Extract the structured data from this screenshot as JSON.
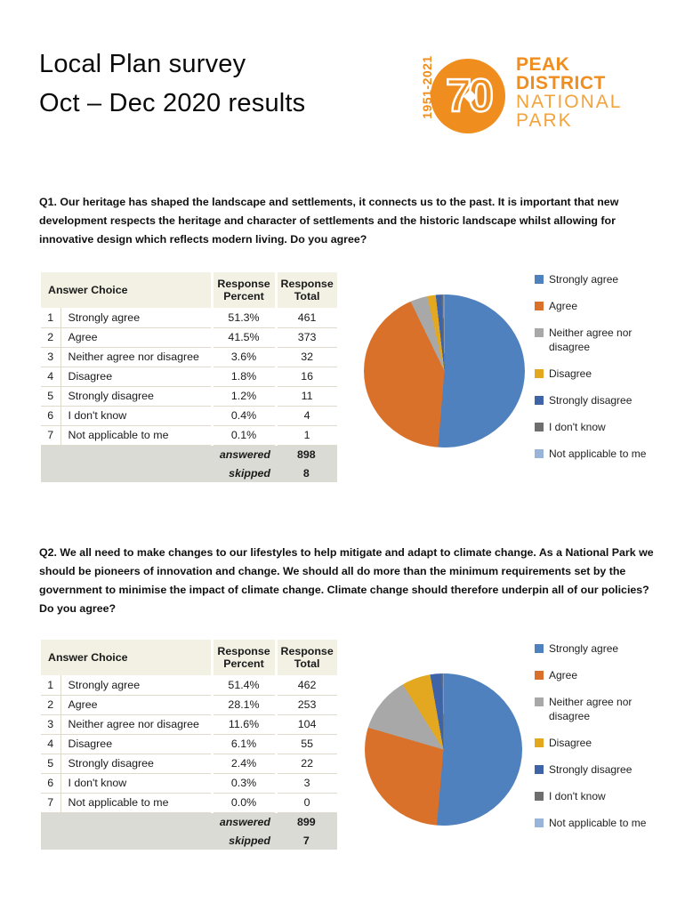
{
  "header": {
    "title_line1": "Local Plan survey",
    "title_line2": "Oct – Dec 2020 results"
  },
  "logo": {
    "years": "1951-2021",
    "badge": "70",
    "line1": "PEAK",
    "line2": "DISTRICT",
    "line3": "NATIONAL",
    "line4": "PARK",
    "orange": "#EF8E1E",
    "light_orange": "#F3A33C"
  },
  "questions": [
    {
      "question": "Q1. Our heritage has shaped the landscape and settlements, it connects us to the past. It is important that new development respects the heritage and character of settlements and the historic landscape whilst allowing for innovative design which reflects modern living. Do you agree?",
      "table": {
        "header_answer": "Answer Choice",
        "header_percent": "Response Percent",
        "header_total": "Response Total",
        "rows": [
          {
            "num": "1",
            "label": "Strongly agree",
            "percent": "51.3%",
            "total": "461"
          },
          {
            "num": "2",
            "label": "Agree",
            "percent": "41.5%",
            "total": "373"
          },
          {
            "num": "3",
            "label": "Neither agree nor disagree",
            "percent": "3.6%",
            "total": "32"
          },
          {
            "num": "4",
            "label": "Disagree",
            "percent": "1.8%",
            "total": "16"
          },
          {
            "num": "5",
            "label": "Strongly disagree",
            "percent": "1.2%",
            "total": "11"
          },
          {
            "num": "6",
            "label": "I don't know",
            "percent": "0.4%",
            "total": "4"
          },
          {
            "num": "7",
            "label": "Not applicable to me",
            "percent": "0.1%",
            "total": "1"
          }
        ],
        "footer": [
          {
            "label": "answered",
            "value": "898"
          },
          {
            "label": "skipped",
            "value": "8"
          }
        ]
      }
    },
    {
      "question": "Q2. We all need to make changes to our lifestyles to help mitigate and adapt to climate change.  As a National Park we should be pioneers of innovation and change. We should all do more than the minimum requirements set by the government to minimise the impact of climate change. Climate change should therefore underpin all of our policies? Do you agree?",
      "table": {
        "header_answer": "Answer Choice",
        "header_percent": "Response Percent",
        "header_total": "Response Total",
        "rows": [
          {
            "num": "1",
            "label": "Strongly agree",
            "percent": "51.4%",
            "total": "462"
          },
          {
            "num": "2",
            "label": "Agree",
            "percent": "28.1%",
            "total": "253"
          },
          {
            "num": "3",
            "label": "Neither agree nor disagree",
            "percent": "11.6%",
            "total": "104"
          },
          {
            "num": "4",
            "label": "Disagree",
            "percent": "6.1%",
            "total": "55"
          },
          {
            "num": "5",
            "label": "Strongly disagree",
            "percent": "2.4%",
            "total": "22"
          },
          {
            "num": "6",
            "label": "I don't know",
            "percent": "0.3%",
            "total": "3"
          },
          {
            "num": "7",
            "label": "Not applicable to me",
            "percent": "0.0%",
            "total": "0"
          }
        ],
        "footer": [
          {
            "label": "answered",
            "value": "899"
          },
          {
            "label": "skipped",
            "value": "7"
          }
        ]
      }
    }
  ],
  "chart_data": [
    {
      "type": "pie",
      "title": "Q1 responses",
      "labels": [
        "Strongly agree",
        "Agree",
        "Neither agree nor disagree",
        "Disagree",
        "Strongly disagree",
        "I don't know",
        "Not applicable to me"
      ],
      "values_percent": [
        51.3,
        41.5,
        3.6,
        1.8,
        1.2,
        0.4,
        0.1
      ],
      "counts": [
        461,
        373,
        32,
        16,
        11,
        4,
        1
      ],
      "colors": [
        "#4E81BD",
        "#D9712B",
        "#A8A8A8",
        "#E3A820",
        "#3E63A6",
        "#6E6E6E",
        "#98B4D8"
      ],
      "legend_position": "right",
      "start_angle_deg": 0,
      "direction": "clockwise"
    },
    {
      "type": "pie",
      "title": "Q2 responses",
      "labels": [
        "Strongly agree",
        "Agree",
        "Neither agree nor disagree",
        "Disagree",
        "Strongly disagree",
        "I don't know",
        "Not applicable to me"
      ],
      "values_percent": [
        51.4,
        28.1,
        11.6,
        6.1,
        2.4,
        0.3,
        0.0
      ],
      "counts": [
        462,
        253,
        104,
        55,
        22,
        3,
        0
      ],
      "colors": [
        "#4E81BD",
        "#D9712B",
        "#A8A8A8",
        "#E3A820",
        "#3E63A6",
        "#6E6E6E",
        "#98B4D8"
      ],
      "legend_position": "right",
      "start_angle_deg": 0,
      "direction": "clockwise"
    }
  ]
}
